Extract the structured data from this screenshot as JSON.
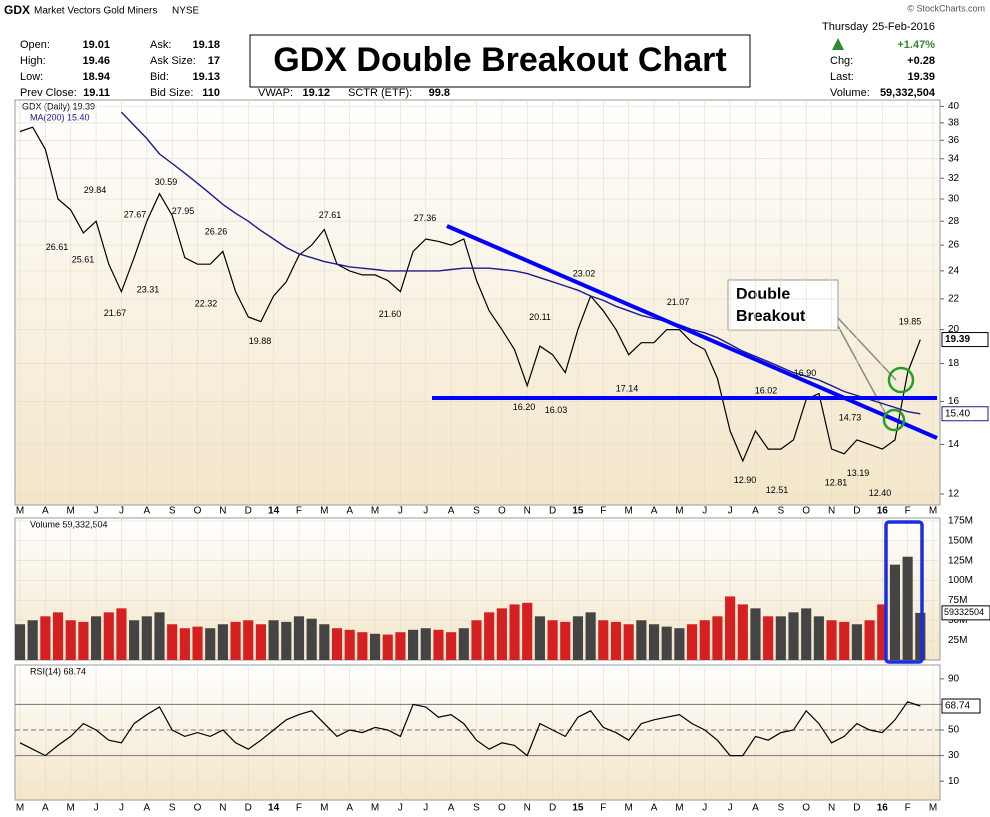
{
  "header": {
    "symbol": "GDX",
    "name": "Market Vectors Gold Miners",
    "exchange": "NYSE",
    "credit": "© StockCharts.com",
    "quote_left": [
      [
        "Open:",
        "19.01"
      ],
      [
        "High:",
        "19.46"
      ],
      [
        "Low:",
        "18.94"
      ],
      [
        "Prev Close:",
        "19.11"
      ]
    ],
    "quote_mid": [
      [
        "Ask:",
        "19.18"
      ],
      [
        "Ask Size:",
        "17"
      ],
      [
        "Bid:",
        "19.13"
      ],
      [
        "Bid Size:",
        "110"
      ]
    ],
    "quote_extra": [
      [
        "VWAP:",
        "19.12"
      ],
      [
        "SCTR (ETF):",
        "99.8"
      ]
    ],
    "day": "Thursday",
    "date": "25-Feb-2016",
    "change_pct": "+1.47%",
    "quote_right": [
      [
        "Chg:",
        "+0.28"
      ],
      [
        "Last:",
        "19.39"
      ],
      [
        "Volume:",
        "59,332,504"
      ]
    ]
  },
  "chart_data": [
    {
      "type": "line",
      "title": "GDX Double Breakout Chart",
      "log_scale": true,
      "grid": true,
      "categories": [
        "M",
        null,
        "A",
        null,
        "M",
        null,
        "J",
        null,
        "J",
        null,
        "A",
        null,
        "S",
        null,
        "O",
        null,
        "N",
        null,
        "D",
        null,
        "14",
        null,
        "F",
        null,
        "M",
        null,
        "A",
        null,
        "M",
        null,
        "J",
        null,
        "J",
        null,
        "A",
        null,
        "S",
        null,
        "O",
        null,
        "N",
        null,
        "D",
        null,
        "15",
        null,
        "F",
        null,
        "M",
        null,
        "A",
        null,
        "M",
        null,
        "J",
        null,
        "J",
        null,
        "A",
        null,
        "S",
        null,
        "O",
        null,
        "N",
        null,
        "D",
        null,
        "16",
        null,
        "F",
        null,
        "M"
      ],
      "series": [
        {
          "name": "GDX (Daily) 19.39",
          "color": "#000000",
          "values": [
            37,
            37.5,
            35,
            30,
            29,
            27,
            28,
            24.5,
            22.5,
            25,
            28,
            30.5,
            28.5,
            25,
            24.5,
            24.5,
            25.5,
            22.5,
            20.8,
            20.5,
            22.2,
            23.2,
            25.2,
            26,
            27.3,
            24.5,
            24,
            23.7,
            23.7,
            23.3,
            22.5,
            25.5,
            26.5,
            26.3,
            26,
            26.5,
            23.3,
            21.2,
            20,
            18.8,
            16.8,
            19,
            18.5,
            17.5,
            20,
            22.2,
            21.2,
            20,
            18.5,
            19.2,
            19.2,
            20,
            20,
            19.2,
            18.8,
            17.2,
            14.6,
            13.3,
            14.6,
            13.8,
            13.8,
            14.2,
            16.1,
            16.4,
            13.8,
            13.6,
            14.2,
            14,
            13.8,
            14.2,
            17.5,
            19.39,
            null
          ]
        },
        {
          "name": "MA(200) 15.40",
          "color": "#1c1c8c",
          "end_label": "15.40",
          "values": [
            null,
            null,
            null,
            null,
            null,
            null,
            null,
            null,
            39.3,
            37.7,
            36.2,
            34.5,
            33.5,
            32.5,
            31.5,
            30.5,
            29.5,
            28.7,
            28,
            27.2,
            26.5,
            25.8,
            25.3,
            25,
            24.7,
            24.5,
            24.3,
            24.2,
            24.1,
            24,
            24,
            24,
            24,
            24,
            24.1,
            24.2,
            24.2,
            24.2,
            24.1,
            24,
            23.8,
            23.5,
            23.2,
            22.9,
            22.6,
            22.2,
            21.9,
            21.5,
            21.2,
            20.9,
            20.7,
            20.5,
            20.3,
            20,
            19.8,
            19.5,
            19.1,
            18.7,
            18.4,
            18.1,
            17.8,
            17.5,
            17.3,
            17.1,
            16.8,
            16.5,
            16.3,
            16.1,
            15.9,
            15.7,
            15.5,
            15.4,
            null
          ]
        }
      ],
      "ylim": [
        11.6,
        40.8
      ],
      "yticks": [
        12,
        14,
        16,
        18,
        20,
        22,
        24,
        26,
        28,
        30,
        32,
        34,
        36,
        38,
        40
      ],
      "annotations": [
        29.84,
        26.61,
        25.61,
        27.67,
        30.59,
        27.95,
        23.31,
        21.67,
        26.26,
        22.32,
        19.88,
        27.61,
        {
          "value": 21.6,
          "label": "21.60"
        },
        27.36,
        23.02,
        20.11,
        {
          "value": 16.2,
          "label": "16.20"
        },
        16.03,
        17.14,
        21.07,
        16.02,
        {
          "value": 16.9,
          "label": "16.90"
        },
        {
          "value": 12.9,
          "label": "12.90"
        },
        12.51,
        14.73,
        13.19,
        12.81,
        {
          "value": 12.4,
          "label": "12.40"
        },
        19.85
      ],
      "callout": [
        "Double",
        "Breakout"
      ],
      "trendline_color": "#0000ff",
      "circle_color": "#22a022"
    },
    {
      "type": "bar",
      "up_color": "#444444",
      "down_color": "#d42020",
      "highlight_color": "#1a2ee0",
      "series": [
        {
          "name": "Volume 59,332,504",
          "values": [
            45000000,
            50000000,
            55000000,
            60000000,
            50000000,
            48000000,
            55000000,
            60000000,
            65000000,
            50000000,
            55000000,
            60000000,
            45000000,
            40000000,
            42000000,
            40000000,
            45000000,
            48000000,
            50000000,
            45000000,
            50000000,
            48000000,
            55000000,
            52000000,
            45000000,
            40000000,
            38000000,
            35000000,
            33000000,
            32000000,
            35000000,
            38000000,
            40000000,
            38000000,
            35000000,
            40000000,
            50000000,
            60000000,
            65000000,
            70000000,
            72000000,
            55000000,
            50000000,
            48000000,
            55000000,
            60000000,
            50000000,
            48000000,
            45000000,
            50000000,
            45000000,
            42000000,
            40000000,
            45000000,
            50000000,
            55000000,
            80000000,
            70000000,
            65000000,
            55000000,
            55000000,
            60000000,
            65000000,
            55000000,
            50000000,
            48000000,
            45000000,
            50000000,
            70000000,
            120000000,
            130000000,
            59332504,
            null
          ]
        }
      ],
      "ylim": [
        0,
        178750000
      ],
      "yticks": [
        {
          "value": 25000000,
          "label": "25M"
        },
        {
          "value": 50000000,
          "label": "50M"
        },
        {
          "value": 75000000,
          "label": "75M"
        },
        {
          "value": 100000000,
          "label": "100M"
        },
        {
          "value": 125000000,
          "label": "125M"
        },
        {
          "value": 150000000,
          "label": "150M"
        },
        {
          "value": 175000000,
          "label": "175M"
        }
      ]
    },
    {
      "type": "line",
      "categories": [
        "M",
        null,
        "A",
        null,
        "M",
        null,
        "J",
        null,
        "J",
        null,
        "A",
        null,
        "S",
        null,
        "O",
        null,
        "N",
        null,
        "D",
        null,
        "14",
        null,
        "F",
        null,
        "M",
        null,
        "A",
        null,
        "M",
        null,
        "J",
        null,
        "J",
        null,
        "A",
        null,
        "S",
        null,
        "O",
        null,
        "N",
        null,
        "D",
        null,
        "15",
        null,
        "F",
        null,
        "M",
        null,
        "A",
        null,
        "M",
        null,
        "J",
        null,
        "J",
        null,
        "A",
        null,
        "S",
        null,
        "O",
        null,
        "N",
        null,
        "D",
        null,
        "16",
        null,
        "F",
        null,
        "M"
      ],
      "series": [
        {
          "name": "RSI(14) 68.74",
          "color": "#000000",
          "values": [
            40,
            35,
            30,
            38,
            45,
            55,
            50,
            42,
            40,
            55,
            62,
            68,
            50,
            45,
            48,
            45,
            50,
            40,
            35,
            42,
            50,
            58,
            62,
            65,
            55,
            45,
            50,
            48,
            52,
            50,
            45,
            70,
            68,
            60,
            62,
            55,
            42,
            35,
            40,
            38,
            30,
            55,
            50,
            45,
            60,
            65,
            52,
            48,
            42,
            55,
            58,
            60,
            62,
            55,
            50,
            42,
            30,
            30,
            45,
            42,
            48,
            50,
            65,
            55,
            40,
            45,
            55,
            50,
            48,
            58,
            72,
            68.74,
            null
          ]
        }
      ],
      "ylim": [
        0,
        100
      ],
      "yticks": [
        10,
        30,
        50,
        70,
        90
      ],
      "reference_lines": [
        30,
        50,
        70
      ]
    }
  ]
}
